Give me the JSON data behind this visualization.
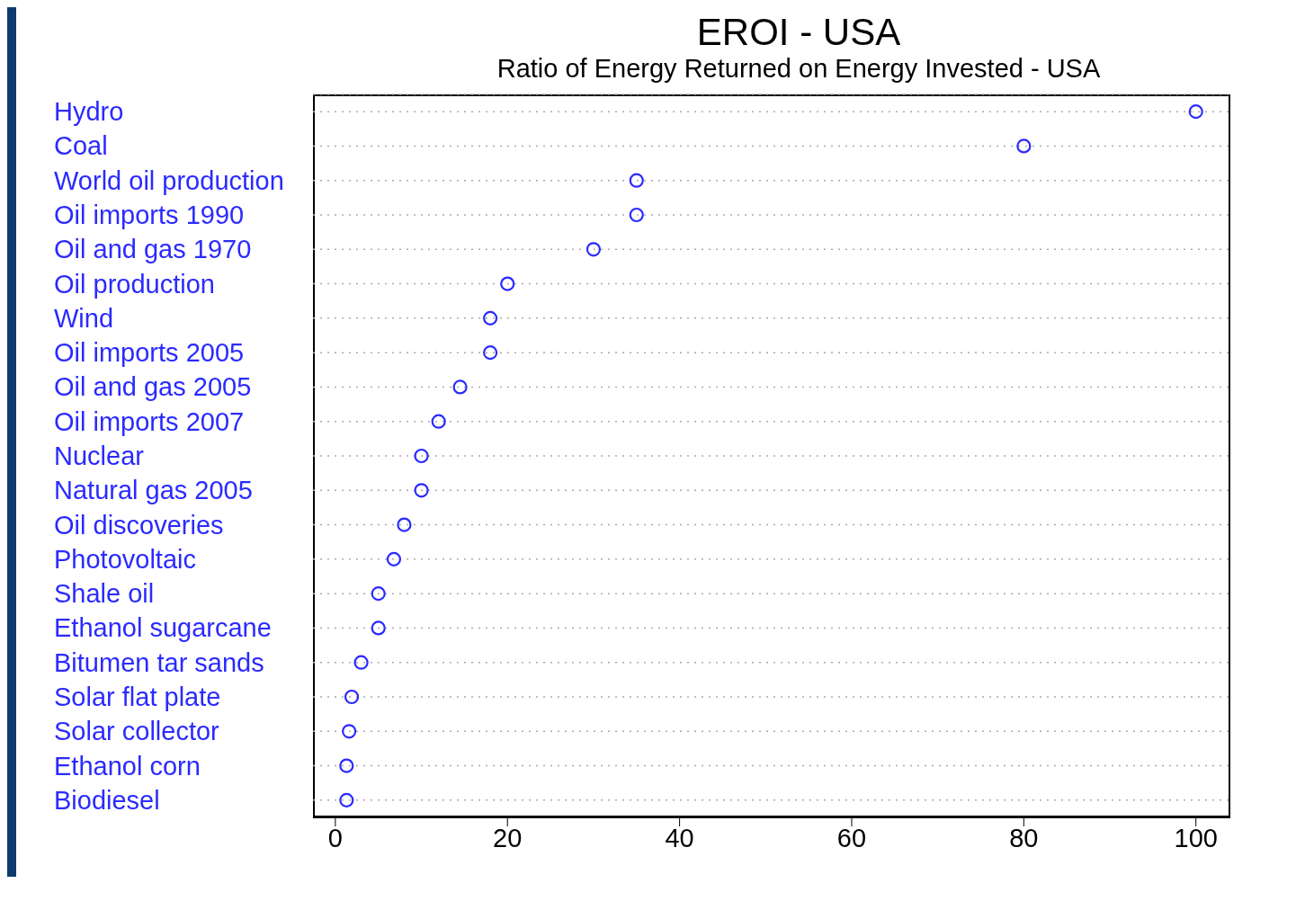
{
  "chart_data": {
    "type": "scatter",
    "orientation": "horizontal",
    "title": "EROI - USA",
    "subtitle": "Ratio of Energy Returned on Energy Invested - USA",
    "categories": [
      "Hydro",
      "Coal",
      "World oil production",
      "Oil imports 1990",
      "Oil and gas 1970",
      "Oil production",
      "Wind",
      "Oil imports 2005",
      "Oil and gas 2005",
      "Oil imports 2007",
      "Nuclear",
      "Natural gas 2005",
      "Oil discoveries",
      "Photovoltaic",
      "Shale oil",
      "Ethanol sugarcane",
      "Bitumen tar sands",
      "Solar flat plate",
      "Solar collector",
      "Ethanol corn",
      "Biodiesel"
    ],
    "values": [
      100,
      80,
      35,
      35,
      30,
      20,
      18,
      18,
      14.5,
      12,
      10,
      10,
      8,
      6.8,
      5,
      5,
      3,
      1.9,
      1.6,
      1.3,
      1.3
    ],
    "color": "#2a2aff",
    "marker": "circle",
    "grid": "y",
    "xlim": [
      -2.6,
      104
    ],
    "xticks": [
      0,
      20,
      40,
      60,
      80,
      100
    ]
  }
}
